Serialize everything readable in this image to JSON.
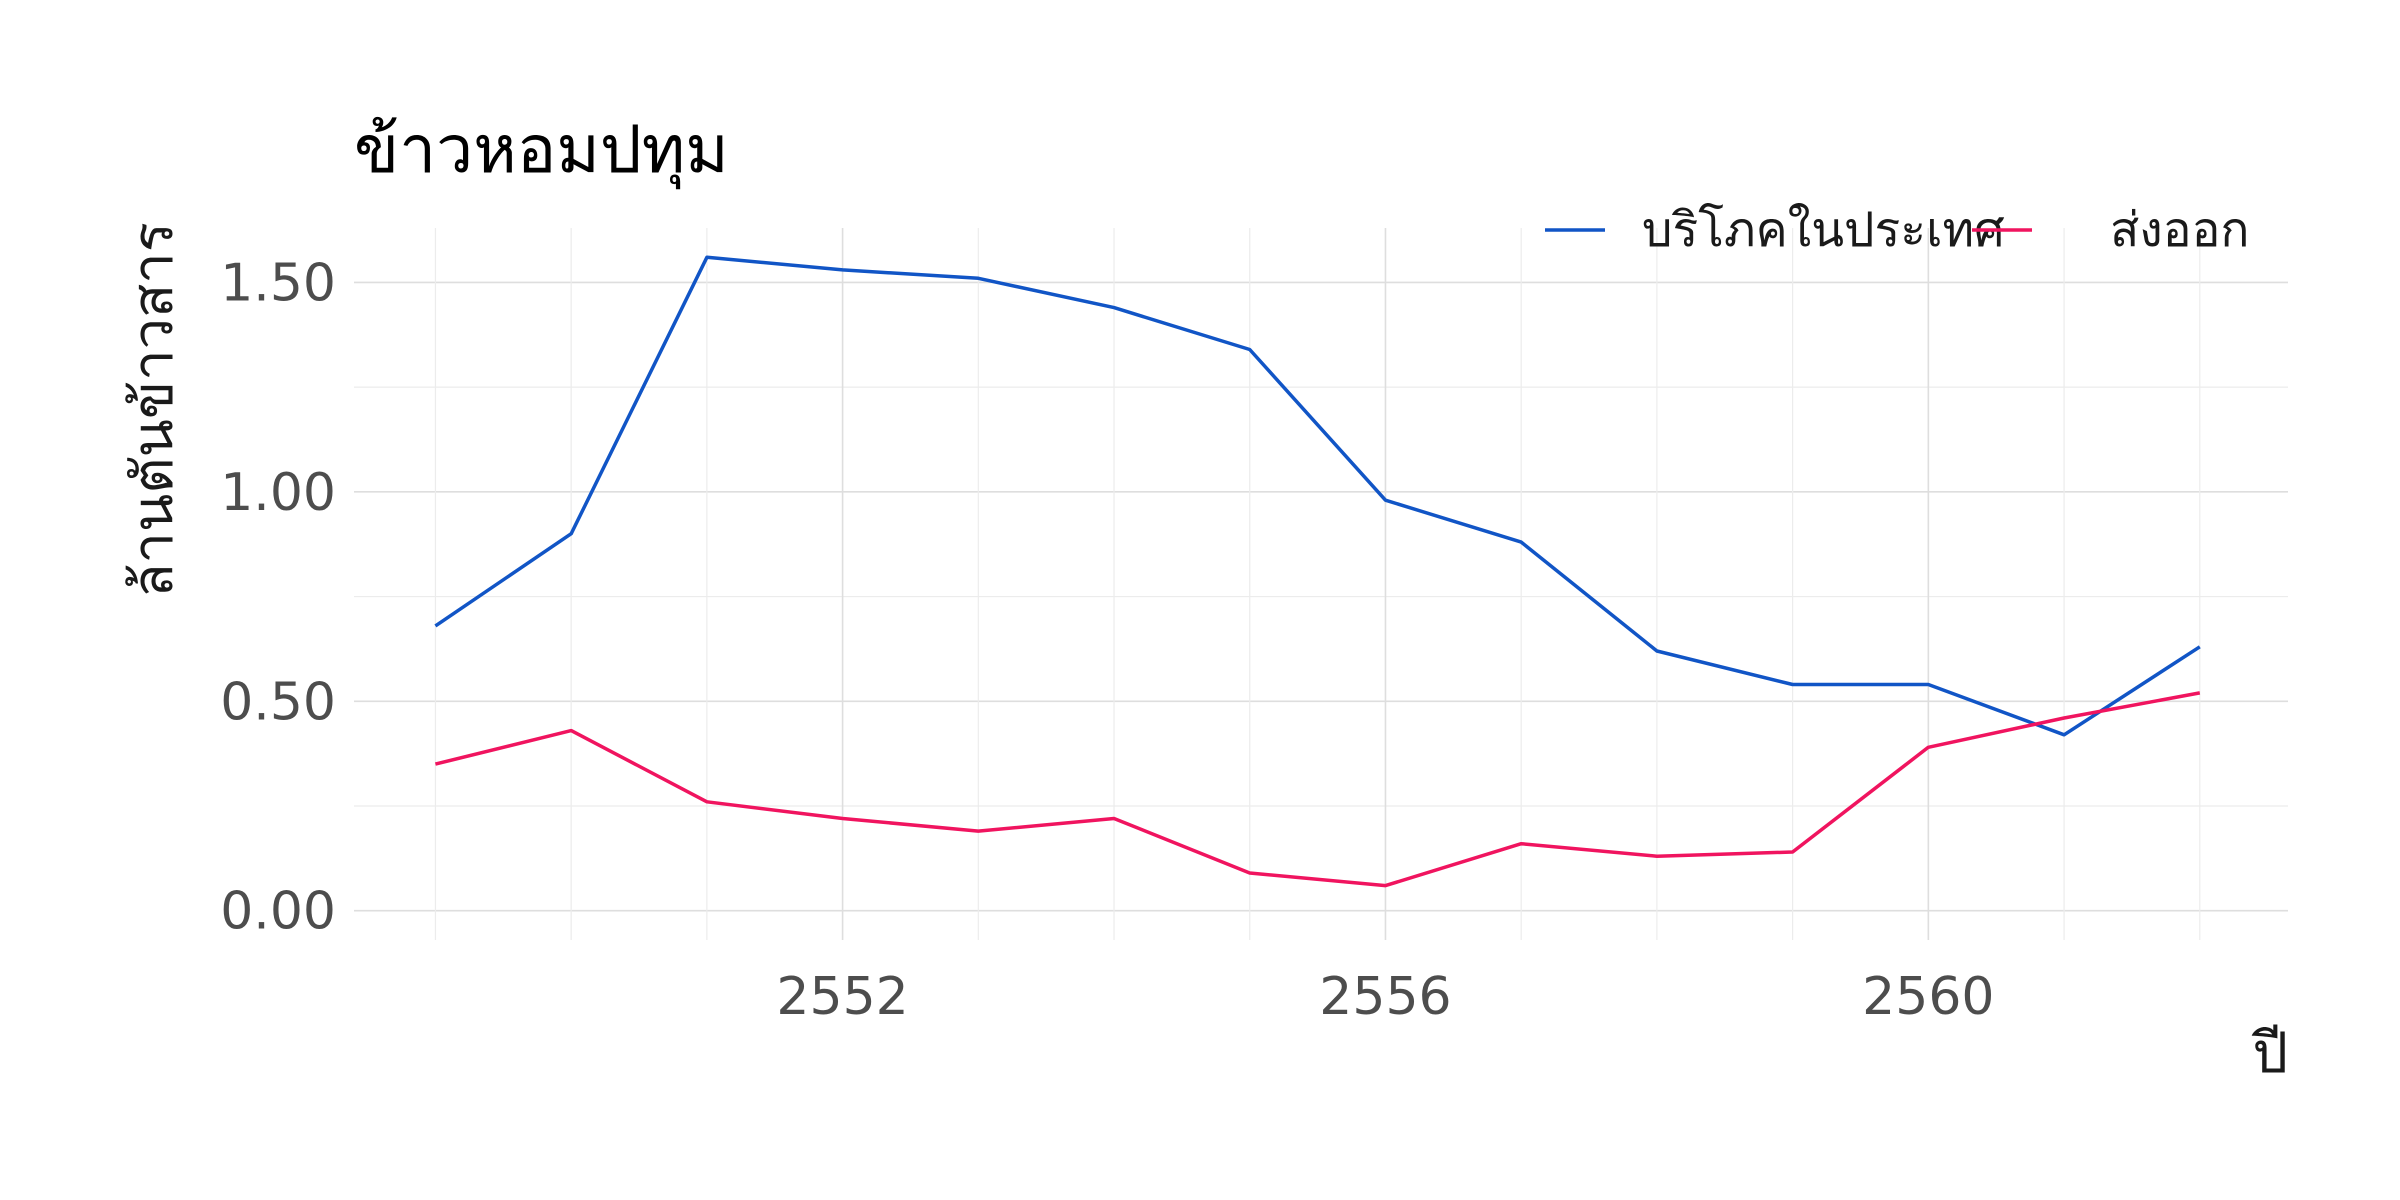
{
  "chart_data": {
    "type": "line",
    "title": "ข้าวหอมปทุม",
    "xlabel": "ปี",
    "ylabel": "ล้านตันข้าวสาร",
    "x": [
      2549,
      2550,
      2551,
      2552,
      2553,
      2554,
      2555,
      2556,
      2557,
      2558,
      2559,
      2560,
      2561,
      2562
    ],
    "xlim": [
      2548.4,
      2562.65
    ],
    "ylim": [
      -0.07,
      1.63
    ],
    "x_ticks": [
      2552,
      2556,
      2560
    ],
    "x_tick_labels": [
      "2552",
      "2556",
      "2560"
    ],
    "y_ticks": [
      0,
      0.5,
      1.0,
      1.5
    ],
    "y_tick_labels": [
      "0.00",
      "0.50",
      "1.00",
      "1.50"
    ],
    "grid": true,
    "legend_position": "top-right",
    "series": [
      {
        "name": "บริโภคในประเทศ",
        "color": "#1155c6",
        "values": [
          0.68,
          0.9,
          1.56,
          1.53,
          1.51,
          1.44,
          1.34,
          0.98,
          0.88,
          0.62,
          0.54,
          0.54,
          0.42,
          0.63
        ]
      },
      {
        "name": "ส่งออก",
        "color": "#f0145f",
        "values": [
          0.35,
          0.43,
          0.26,
          0.22,
          0.19,
          0.22,
          0.09,
          0.06,
          0.16,
          0.13,
          0.14,
          0.39,
          0.46,
          0.52
        ]
      }
    ]
  }
}
